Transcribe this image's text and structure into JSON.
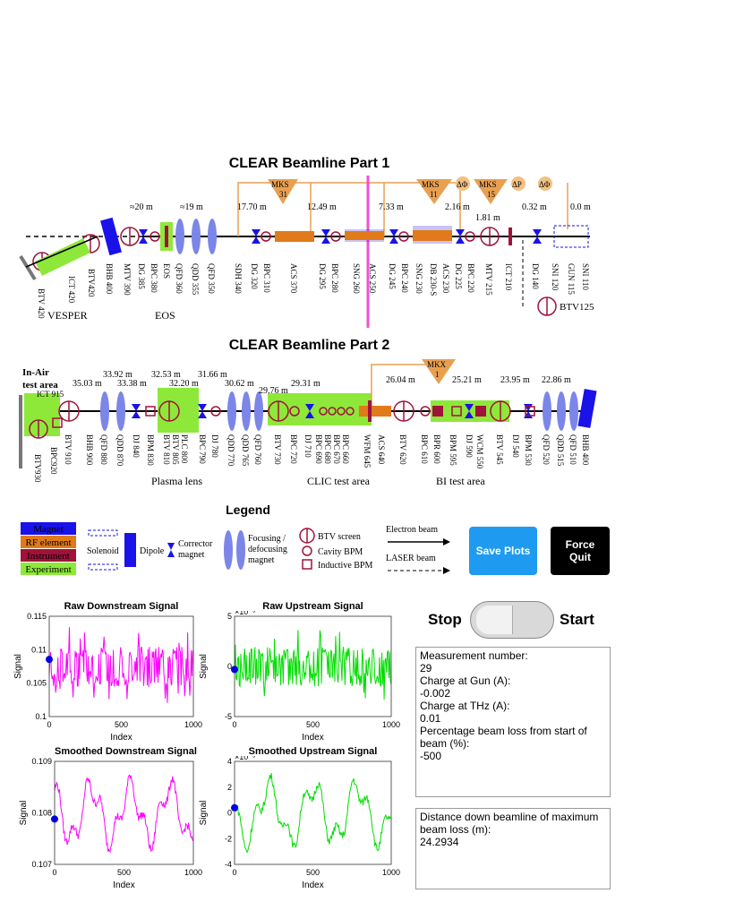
{
  "part1": {
    "title": "CLEAR Beamline Part 1",
    "top_labels": [
      "MKS 31",
      "MKS 11",
      "MKS 15",
      "ΔΦ",
      "ΔΦ",
      "ΔP",
      "ΔΦ"
    ],
    "distances": [
      "≈20 m",
      "≈19 m",
      "17.70 m",
      "12.49 m",
      "7.33 m",
      "2.16 m",
      "1.81 m",
      "0.32 m",
      "0.0 m"
    ],
    "elements": [
      "BTV 420",
      "ICT 420",
      "BTV420",
      "BHB 400",
      "MTV 390",
      "DG 385",
      "BPC 380",
      "EOS",
      "QFD 360",
      "QDD 355",
      "QFD 350",
      "SDH 340",
      "DG 320",
      "BPC 310",
      "ACS 370",
      "DG 295",
      "BPC 280",
      "SNG 260",
      "ACS 250",
      "DG 245",
      "BPC 240",
      "SNG 230",
      "DB 230-S",
      "ACS 230",
      "DG 225",
      "BPC 220",
      "MTV 215",
      "ICT 210",
      "DG 140",
      "SNI 120",
      "GUN 115",
      "SNI 110",
      "BTV125"
    ],
    "areas": [
      "VESPER",
      "EOS"
    ]
  },
  "part2": {
    "title": "CLEAR Beamline Part 2",
    "top_labels": [
      "MKX 1"
    ],
    "corner": [
      "In-Air",
      "test area"
    ],
    "distances": [
      "35.03 m",
      "33.92 m",
      "33.38 m",
      "32.53 m",
      "32.20 m",
      "31.66 m",
      "30.62 m",
      "29.76 m",
      "29.31 m",
      "26.04 m",
      "25.21 m",
      "23.95 m",
      "22.86 m"
    ],
    "elements": [
      "ICT 915",
      "BTV 910",
      "BTV930",
      "BPC920",
      "BHB 900",
      "QFD 880",
      "QDD 870",
      "DJ 840",
      "BPM 830",
      "BTV 810",
      "BTV 805",
      "PLC 800",
      "BPC 790",
      "DJ 780",
      "QDD 770",
      "QDD 765",
      "QFD 760",
      "BTV 730",
      "BPC 720",
      "DJ 710",
      "BPC 690",
      "BPC 680",
      "BPC 670",
      "BPC 660",
      "WFM 645",
      "ACS 640",
      "BTV 620",
      "BPC 610",
      "BPR 600",
      "BPM 595",
      "DJ 590",
      "WCM 550",
      "BTV 545",
      "DJ 540",
      "BPM 530",
      "QFD 520",
      "QDD 515",
      "QFD 510",
      "BHB 400"
    ],
    "areas": [
      "Plasma lens",
      "CLIC test area",
      "BI test area"
    ]
  },
  "legend": {
    "title": "Legend",
    "color_items": [
      {
        "label": "Magnet",
        "color": "#1a12e8"
      },
      {
        "label": "RF element",
        "color": "#e07a1a"
      },
      {
        "label": "Instrument",
        "color": "#a0123a"
      },
      {
        "label": "Experiment",
        "color": "#8ee83a"
      }
    ],
    "solenoid": "Solenoid",
    "dipole": "Dipole",
    "corrector": [
      "Corrector",
      "magnet"
    ],
    "focusing": [
      "Focusing /",
      "defocusing",
      "magnet"
    ],
    "btv_screen": "BTV screen",
    "cavity_bpm": "Cavity BPM",
    "inductive_bpm": "Inductive BPM",
    "electron_beam": "Electron beam",
    "laser_beam": "LASER beam"
  },
  "buttons": {
    "save": "Save Plots",
    "force_quit": "Force Quit"
  },
  "switch": {
    "left": "Stop",
    "right": "Start"
  },
  "info_box1": "Measurement number:\n29\nCharge at Gun (A):\n-0.002\nCharge at THz (A):\n0.01\nPercentage beam loss from start of beam (%):\n-500",
  "info_box2": "Distance down beamline of maximum beam loss (m):\n24.2934",
  "plots": [
    {
      "title": "Raw Downstream Signal",
      "xlabel": "Index",
      "ylabel": "Signal",
      "color": "#ff00ff",
      "xticks": [
        "0",
        "500",
        "1000"
      ],
      "yticks": [
        "0.115",
        "0.11",
        "0.105",
        "0.1"
      ],
      "exponent": ""
    },
    {
      "title": "Raw Upstream Signal",
      "xlabel": "Index",
      "ylabel": "Signal",
      "color": "#00dd00",
      "xticks": [
        "0",
        "500",
        "1000"
      ],
      "yticks": [
        "5",
        "0",
        "-5"
      ],
      "exponent": "×10⁻³"
    },
    {
      "title": "Smoothed Downstream Signal",
      "xlabel": "Index",
      "ylabel": "Signal",
      "color": "#ff00ff",
      "xticks": [
        "0",
        "500",
        "1000"
      ],
      "yticks": [
        "0.109",
        "0.108",
        "0.107"
      ],
      "exponent": ""
    },
    {
      "title": "Smoothed Upstream Signal",
      "xlabel": "Index",
      "ylabel": "Signal",
      "color": "#00dd00",
      "xticks": [
        "0",
        "500",
        "1000"
      ],
      "yticks": [
        "4",
        "2",
        "0",
        "-2",
        "-4"
      ],
      "exponent": "×10⁻³"
    }
  ],
  "chart_data": [
    {
      "type": "line",
      "title": "Raw Downstream Signal",
      "xlabel": "Index",
      "ylabel": "Signal",
      "xlim": [
        0,
        1000
      ],
      "ylim": [
        0.1,
        0.115
      ],
      "series": [
        {
          "values_summary": "noisy between 0.104 and 0.114",
          "start_marker": [
            0,
            0.108
          ]
        }
      ]
    },
    {
      "type": "line",
      "title": "Raw Upstream Signal",
      "xlabel": "Index",
      "ylabel": "Signal",
      "xlim": [
        0,
        1000
      ],
      "ylim": [
        -0.005,
        0.005
      ],
      "series": [
        {
          "values_summary": "noisy around 0",
          "start_marker": [
            0,
            0
          ]
        }
      ]
    },
    {
      "type": "line",
      "title": "Smoothed Downstream Signal",
      "xlabel": "Index",
      "ylabel": "Signal",
      "xlim": [
        0,
        1000
      ],
      "ylim": [
        0.1065,
        0.109
      ],
      "series": [
        {
          "start_marker": [
            0,
            0.1075
          ]
        }
      ]
    },
    {
      "type": "line",
      "title": "Smoothed Upstream Signal",
      "xlabel": "Index",
      "ylabel": "Signal",
      "xlim": [
        0,
        1000
      ],
      "ylim": [
        -0.004,
        0.004
      ],
      "series": [
        {
          "start_marker": [
            0,
            0
          ]
        }
      ]
    }
  ]
}
